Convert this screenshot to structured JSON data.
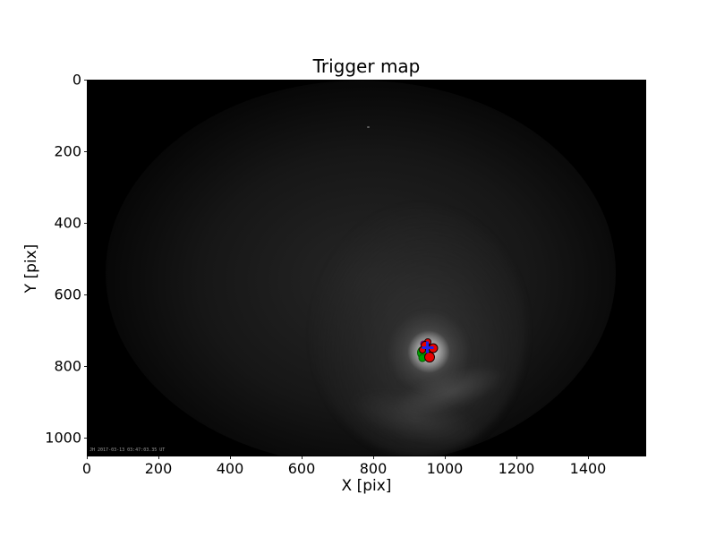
{
  "figure": {
    "title": "Trigger map",
    "xlabel": "X [pix]",
    "ylabel": "Y [pix]",
    "watermark": "JH 2017-03-13 03:47:03.35 UT",
    "background_color": "#ffffff",
    "image_background_color": "#000000"
  },
  "chart_data": {
    "type": "scatter",
    "title": "Trigger map",
    "xlabel": "X [pix]",
    "ylabel": "Y [pix]",
    "xlim": [
      0,
      1562
    ],
    "ylim": [
      0,
      1052
    ],
    "y_inverted": true,
    "grid": false,
    "legend": "none",
    "xticks": [
      0,
      200,
      400,
      600,
      800,
      1000,
      1200,
      1400
    ],
    "yticks": [
      0,
      200,
      400,
      600,
      800,
      1000
    ],
    "background": "all-sky camera frame: black field, faint fisheye glow disk, bright cloud patch around marker cluster",
    "series": [
      {
        "name": "cluster-region-green",
        "marker": "circle",
        "color": "#00a000",
        "edge": "#006000",
        "points": [
          {
            "x": 939,
            "y": 759,
            "d": 16
          },
          {
            "x": 934,
            "y": 775,
            "d": 9
          }
        ]
      },
      {
        "name": "magenta-marker",
        "marker": "circle",
        "color": "#c816c8",
        "edge": "#700070",
        "points": [
          {
            "x": 938,
            "y": 735,
            "d": 7
          }
        ]
      },
      {
        "name": "triggered-pixels-red",
        "marker": "circle",
        "color": "#e80000",
        "edge": "#1a0000",
        "points": [
          {
            "x": 950,
            "y": 729,
            "d": 8
          },
          {
            "x": 943,
            "y": 740,
            "d": 10
          },
          {
            "x": 965,
            "y": 748,
            "d": 11
          },
          {
            "x": 934,
            "y": 753,
            "d": 8
          },
          {
            "x": 956,
            "y": 772,
            "d": 12
          }
        ]
      },
      {
        "name": "centroid-blue-plus",
        "marker": "plus",
        "color": "#2222e8",
        "edge": "#2222e8",
        "points": [
          {
            "x": 949,
            "y": 746,
            "d": 13
          }
        ]
      }
    ]
  }
}
